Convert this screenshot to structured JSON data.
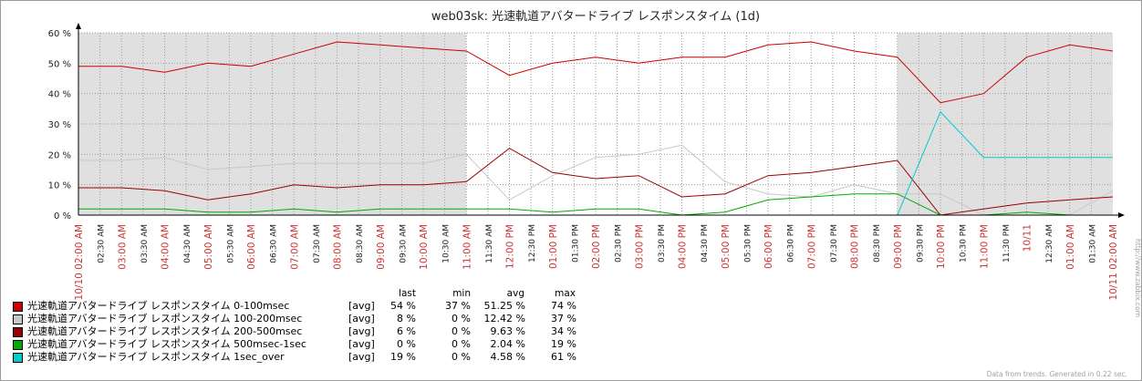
{
  "chart_data": {
    "type": "line",
    "title": "web03sk: 光速軌道アバタードライブ レスポンスタイム (1d)",
    "ylim": [
      0,
      60
    ],
    "y_ticks": [
      "0 %",
      "10 %",
      "20 %",
      "30 %",
      "40 %",
      "50 %",
      "60 %"
    ],
    "x_ticks": [
      "10/10 02:00 AM",
      "02:30 AM",
      "03:00 AM",
      "03:30 AM",
      "04:00 AM",
      "04:30 AM",
      "05:00 AM",
      "05:30 AM",
      "06:00 AM",
      "06:30 AM",
      "07:00 AM",
      "07:30 AM",
      "08:00 AM",
      "08:30 AM",
      "09:00 AM",
      "09:30 AM",
      "10:00 AM",
      "10:30 AM",
      "11:00 AM",
      "11:30 AM",
      "12:00 PM",
      "12:30 PM",
      "01:00 PM",
      "01:30 PM",
      "02:00 PM",
      "02:30 PM",
      "03:00 PM",
      "03:30 PM",
      "04:00 PM",
      "04:30 PM",
      "05:00 PM",
      "05:30 PM",
      "06:00 PM",
      "06:30 PM",
      "07:00 PM",
      "07:30 PM",
      "08:00 PM",
      "08:30 PM",
      "09:00 PM",
      "09:30 PM",
      "10:00 PM",
      "10:30 PM",
      "11:00 PM",
      "11:30 PM",
      "10/11",
      "12:30 AM",
      "01:00 AM",
      "01:30 AM",
      "10/11 02:00 AM"
    ],
    "x_hours": [
      0,
      1,
      2,
      3,
      4,
      5,
      6,
      7,
      8,
      9,
      10,
      11,
      12,
      13,
      14,
      15,
      16,
      17,
      18,
      19,
      20,
      21,
      22,
      23,
      24
    ],
    "shaded_hours": [
      [
        0,
        9
      ],
      [
        19,
        24
      ]
    ],
    "series": [
      {
        "name": "光速軌道アバタードライブ レスポンスタイム 0-100msec",
        "color": "#cc0000",
        "fn": "[avg]",
        "last": "54 %",
        "min": "37 %",
        "avg": "51.25 %",
        "max": "74 %",
        "values": [
          49,
          49,
          47,
          50,
          49,
          53,
          57,
          56,
          55,
          54,
          46,
          50,
          52,
          50,
          52,
          52,
          56,
          57,
          54,
          52,
          37,
          40,
          52,
          56,
          54
        ]
      },
      {
        "name": "光速軌道アバタードライブ レスポンスタイム 100-200msec",
        "color": "#c8c8c8",
        "fn": "[avg]",
        "last": "8 %",
        "min": "0 %",
        "avg": "12.42 %",
        "max": "37 %",
        "values": [
          18,
          18,
          19,
          15,
          16,
          17,
          17,
          17,
          17,
          20,
          5,
          13,
          19,
          20,
          23,
          11,
          7,
          6,
          10,
          7,
          7,
          0,
          0,
          0,
          8
        ]
      },
      {
        "name": "光速軌道アバタードライブ レスポンスタイム 200-500msec",
        "color": "#990000",
        "fn": "[avg]",
        "last": "6 %",
        "min": "0 %",
        "avg": "9.63 %",
        "max": "34 %",
        "values": [
          9,
          9,
          8,
          5,
          7,
          10,
          9,
          10,
          10,
          11,
          22,
          14,
          12,
          13,
          6,
          7,
          13,
          14,
          16,
          18,
          0,
          2,
          4,
          5,
          6
        ]
      },
      {
        "name": "光速軌道アバタードライブ レスポンスタイム 500msec-1sec",
        "color": "#00aa00",
        "fn": "[avg]",
        "last": "0 %",
        "min": "0 %",
        "avg": "2.04 %",
        "max": "19 %",
        "values": [
          2,
          2,
          2,
          1,
          1,
          2,
          1,
          2,
          2,
          2,
          2,
          1,
          2,
          2,
          0,
          1,
          5,
          6,
          7,
          7,
          0,
          0,
          1,
          0,
          0
        ]
      },
      {
        "name": "光速軌道アバタードライブ レスポンスタイム 1sec_over",
        "color": "#00cccc",
        "fn": "[avg]",
        "last": "19 %",
        "min": "0 %",
        "avg": "4.58 %",
        "max": "61 %",
        "values": [
          0,
          0,
          0,
          0,
          0,
          0,
          0,
          0,
          0,
          0,
          0,
          0,
          0,
          0,
          0,
          0,
          0,
          0,
          0,
          0,
          34,
          19,
          19,
          19,
          19
        ]
      }
    ]
  },
  "legend_headers": {
    "last": "last",
    "min": "min",
    "avg": "avg",
    "max": "max"
  },
  "footer": "Data from trends. Generated in 0.22 sec.",
  "brand": "http://www.zabbix.com"
}
